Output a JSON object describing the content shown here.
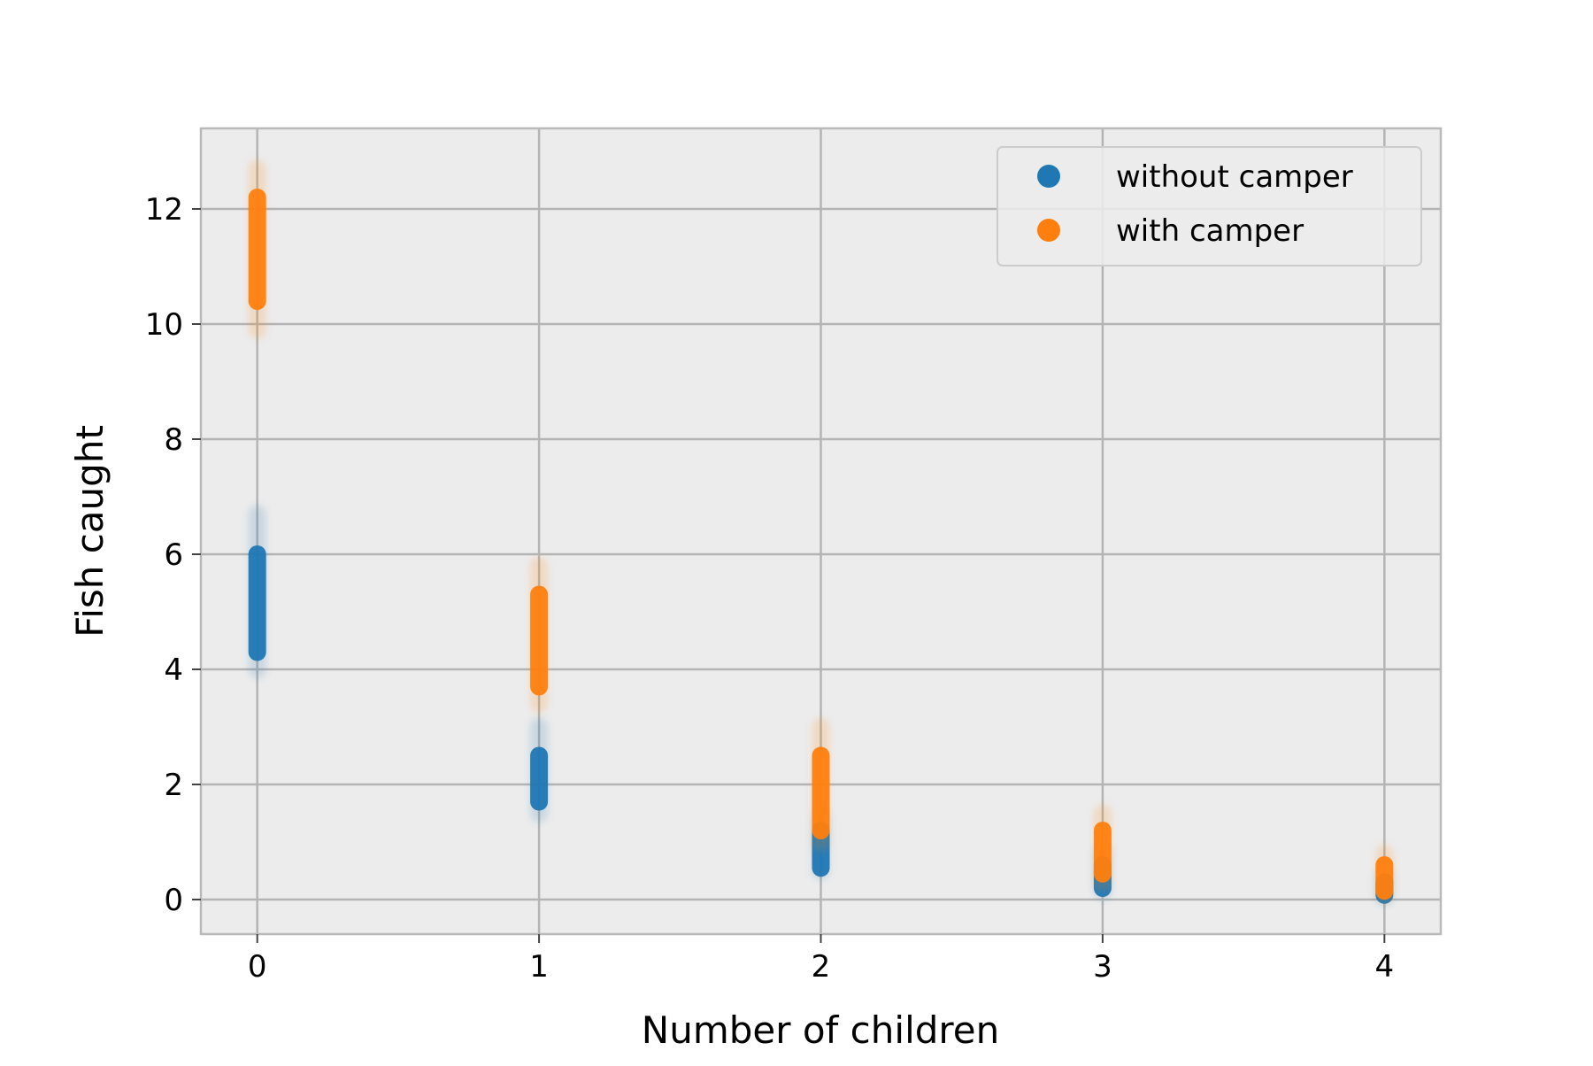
{
  "chart_data": {
    "type": "scatter",
    "title": "",
    "xlabel": "Number of children",
    "ylabel": "Fish caught",
    "xlim": [
      -0.2,
      4.2
    ],
    "ylim": [
      -0.6,
      13.4
    ],
    "xticks": [
      "0",
      "1",
      "2",
      "3",
      "4"
    ],
    "yticks": [
      "0",
      "2",
      "4",
      "6",
      "8",
      "10",
      "12"
    ],
    "grid": true,
    "background_color": "#ececec",
    "legend_position": "top-right",
    "series": [
      {
        "name": "without camper",
        "color": "#1f77b4",
        "points": [
          {
            "x": 0,
            "y_min": 4.3,
            "y_max": 6.0,
            "faint_min": 4.0,
            "faint_max": 6.7
          },
          {
            "x": 1,
            "y_min": 1.7,
            "y_max": 2.5,
            "faint_min": 1.5,
            "faint_max": 3.0
          },
          {
            "x": 2,
            "y_min": 0.55,
            "y_max": 1.2,
            "faint_min": 0.5,
            "faint_max": 1.4
          },
          {
            "x": 3,
            "y_min": 0.2,
            "y_max": 0.6,
            "faint_min": 0.15,
            "faint_max": 0.8
          },
          {
            "x": 4,
            "y_min": 0.08,
            "y_max": 0.3,
            "faint_min": 0.05,
            "faint_max": 0.4
          }
        ]
      },
      {
        "name": "with camper",
        "color": "#ff7f0e",
        "points": [
          {
            "x": 0,
            "y_min": 10.4,
            "y_max": 12.2,
            "faint_min": 9.9,
            "faint_max": 12.7
          },
          {
            "x": 1,
            "y_min": 3.7,
            "y_max": 5.3,
            "faint_min": 3.4,
            "faint_max": 5.8
          },
          {
            "x": 2,
            "y_min": 1.2,
            "y_max": 2.5,
            "faint_min": 1.0,
            "faint_max": 3.0
          },
          {
            "x": 3,
            "y_min": 0.45,
            "y_max": 1.2,
            "faint_min": 0.3,
            "faint_max": 1.5
          },
          {
            "x": 4,
            "y_min": 0.15,
            "y_max": 0.6,
            "faint_min": 0.1,
            "faint_max": 0.8
          }
        ]
      }
    ]
  }
}
